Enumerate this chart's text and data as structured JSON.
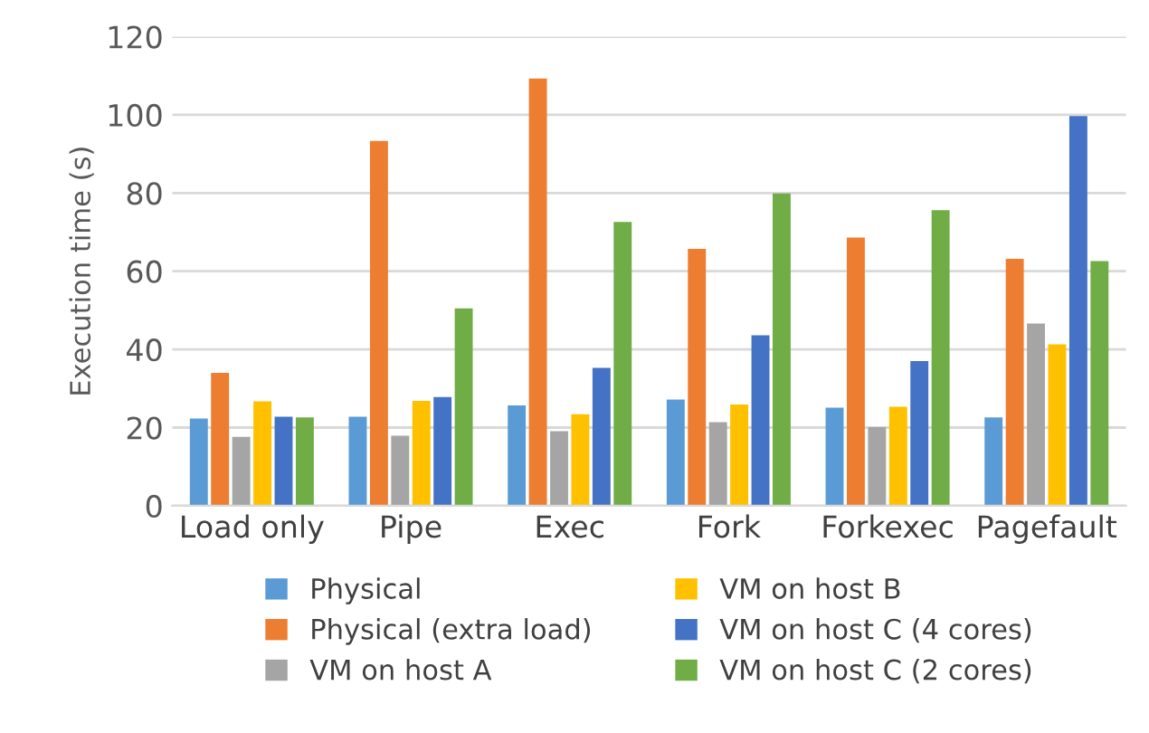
{
  "chart_data": {
    "type": "bar",
    "ylabel": "Execution time (s)",
    "categories": [
      "Load only",
      "Pipe",
      "Exec",
      "Fork",
      "Forkexec",
      "Pagefault"
    ],
    "series": [
      {
        "name": "Physical",
        "color": "#5b9bd5",
        "values": [
          22.3,
          22.8,
          25.7,
          27.2,
          25.1,
          22.6
        ]
      },
      {
        "name": "Physical (extra load)",
        "color": "#ed7d31",
        "values": [
          34,
          93.3,
          109.3,
          65.7,
          68.6,
          63.2
        ]
      },
      {
        "name": "VM on host A",
        "color": "#a5a5a5",
        "values": [
          17.6,
          17.9,
          19.1,
          21.4,
          20.1,
          46.6
        ]
      },
      {
        "name": "VM on host B",
        "color": "#ffc000",
        "values": [
          26.7,
          26.8,
          23.4,
          25.9,
          25.3,
          41.3
        ]
      },
      {
        "name": "VM on host C (4 cores)",
        "color": "#4472c4",
        "values": [
          22.8,
          27.8,
          35.3,
          43.6,
          37.0,
          99.7
        ]
      },
      {
        "name": "VM on host C (2 cores)",
        "color": "#70ad47",
        "values": [
          22.6,
          50.5,
          72.6,
          79.9,
          75.6,
          62.6
        ]
      }
    ],
    "ylim": [
      0,
      120
    ],
    "yticks": [
      0,
      20,
      40,
      60,
      80,
      100,
      120
    ],
    "grid": "y",
    "legend": "bottom"
  }
}
